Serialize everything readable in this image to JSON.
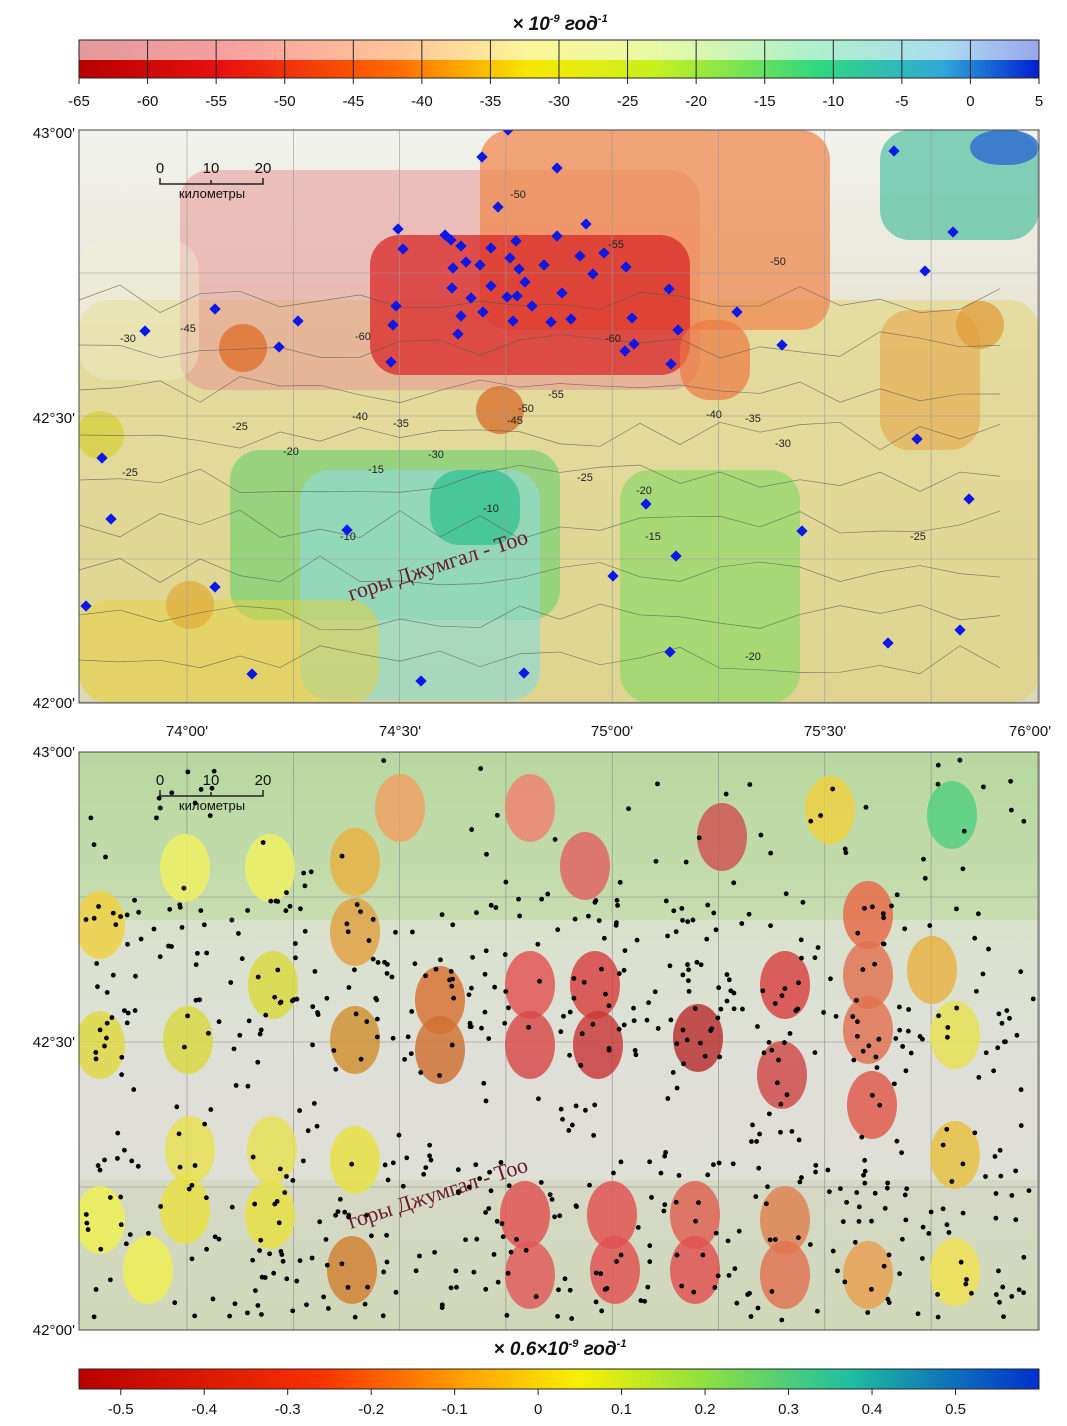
{
  "top_colorbar": {
    "title": "× 10",
    "title_exp": "-9",
    "title_unit": " год",
    "title_unit_exp": "-1",
    "range": [
      -65,
      5
    ],
    "ticks": [
      -65,
      -60,
      -55,
      -50,
      -45,
      -40,
      -35,
      -30,
      -25,
      -20,
      -15,
      -10,
      -5,
      0,
      5
    ]
  },
  "top_map": {
    "lat_labels": [
      "43°00'",
      "42°30'",
      "42°00'"
    ],
    "lon_labels": [
      "74°00'",
      "74°30'",
      "75°00'",
      "75°30'",
      "76°00'"
    ],
    "scale_bar": {
      "ticks": [
        "0",
        "10",
        "20"
      ],
      "unit": "километры"
    },
    "place_label": "горы  Джумгал - Тоо",
    "contour_labels": [
      "-50",
      "-55",
      "-50",
      "-60",
      "-60",
      "-45",
      "-30",
      "-55",
      "-50",
      "-45",
      "-40",
      "-35",
      "-40",
      "-35",
      "-30",
      "-25",
      "-25",
      "-20",
      "-30",
      "-15",
      "-25",
      "-20",
      "-10",
      "-10",
      "-15",
      "-25",
      "-20"
    ]
  },
  "bottom_map": {
    "lat_labels": [
      "43°00'",
      "42°30'",
      "42°00'"
    ],
    "scale_bar": {
      "ticks": [
        "0",
        "10",
        "20"
      ],
      "unit": "километры"
    },
    "place_label": "горы  Джумгал - Тоо"
  },
  "bottom_colorbar": {
    "title": "× 0.6×10",
    "title_exp": "-9",
    "title_unit": " год",
    "title_unit_exp": "-1",
    "range": [
      -0.55,
      0.6
    ],
    "ticks": [
      -0.5,
      -0.4,
      -0.3,
      -0.2,
      -0.1,
      0,
      0.1,
      0.2,
      0.3,
      0.4,
      0.5
    ]
  }
}
